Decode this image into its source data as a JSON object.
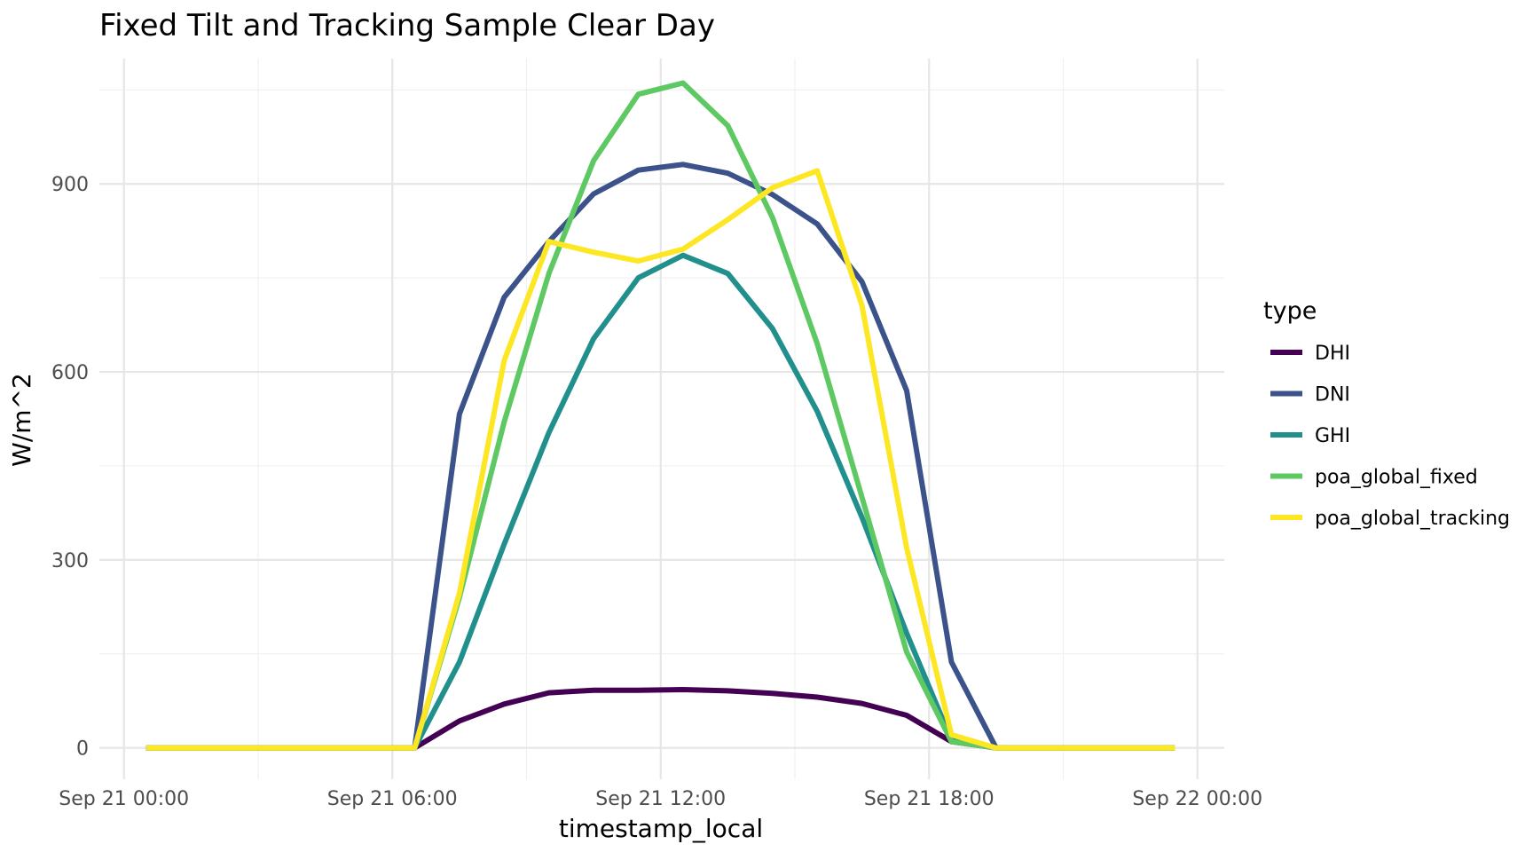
{
  "chart_data": {
    "type": "line",
    "title": "Fixed Tilt and Tracking Sample Clear Day",
    "xlabel": "timestamp_local",
    "ylabel": "W/m^2",
    "x_ticks": [
      "Sep 21 00:00",
      "Sep 21 06:00",
      "Sep 21 12:00",
      "Sep 21 18:00",
      "Sep 22 00:00"
    ],
    "y_ticks": [
      0,
      300,
      600,
      900
    ],
    "x_range_hours": [
      -0.55,
      24.6
    ],
    "ylim": [
      -50,
      1100
    ],
    "grid": true,
    "legend_title": "type",
    "legend_position": "right",
    "x_hours": [
      0.5,
      1.5,
      2.5,
      3.5,
      4.5,
      5.5,
      6.5,
      7.5,
      8.5,
      9.5,
      10.5,
      11.5,
      12.5,
      13.5,
      14.5,
      15.5,
      16.5,
      17.5,
      18.5,
      19.5,
      20.5,
      21.5,
      22.5,
      23.5
    ],
    "series": [
      {
        "name": "DHI",
        "color": "#440154",
        "values": [
          0,
          0,
          0,
          0,
          0,
          0,
          0,
          43,
          70,
          88,
          92,
          92,
          93,
          91,
          87,
          81,
          71,
          52,
          10,
          0,
          0,
          0,
          0,
          0
        ]
      },
      {
        "name": "DNI",
        "color": "#3b528b",
        "values": [
          0,
          0,
          0,
          0,
          0,
          0,
          0,
          533,
          719,
          808,
          884,
          922,
          931,
          917,
          883,
          836,
          744,
          570,
          137,
          0,
          0,
          0,
          0,
          0
        ]
      },
      {
        "name": "GHI",
        "color": "#21908c",
        "values": [
          0,
          0,
          0,
          0,
          0,
          0,
          0,
          137,
          325,
          503,
          653,
          750,
          786,
          757,
          669,
          537,
          368,
          183,
          12,
          0,
          0,
          0,
          0,
          0
        ]
      },
      {
        "name": "poa_global_fixed",
        "color": "#5ec962",
        "values": [
          0,
          0,
          0,
          0,
          0,
          0,
          0,
          240,
          520,
          757,
          937,
          1043,
          1061,
          993,
          846,
          645,
          400,
          153,
          10,
          0,
          0,
          0,
          0,
          0
        ]
      },
      {
        "name": "poa_global_tracking",
        "color": "#fde725",
        "values": [
          0,
          0,
          0,
          0,
          0,
          0,
          0,
          247,
          618,
          808,
          791,
          777,
          796,
          843,
          894,
          921,
          706,
          319,
          21,
          0,
          0,
          0,
          0,
          0
        ]
      }
    ]
  }
}
